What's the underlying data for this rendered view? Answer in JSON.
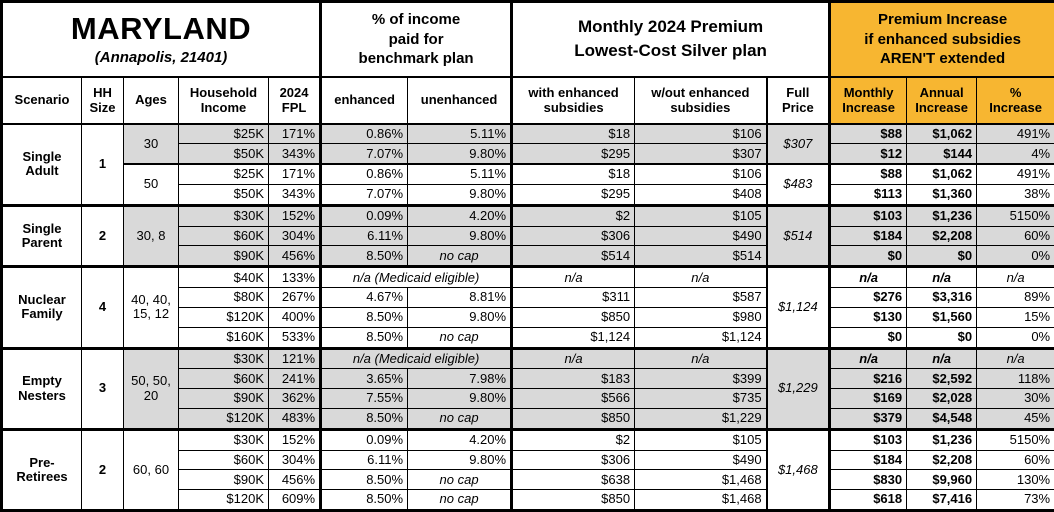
{
  "title": {
    "state": "MARYLAND",
    "location": "(Annapolis, 21401)"
  },
  "section_headers": {
    "benchmark": "% of income\npaid for\nbenchmark plan",
    "premium": "Monthly 2024 Premium\nLowest-Cost Silver plan",
    "increase": "Premium Increase\nif enhanced subsidies\nAREN'T extended"
  },
  "column_headers": {
    "scenario": "Scenario",
    "hh_size": "HH\nSize",
    "ages": "Ages",
    "income": "Household\nIncome",
    "fpl": "2024\nFPL",
    "enhanced": "enhanced",
    "unenhanced": "unenhanced",
    "with_subsidies": "with enhanced\nsubsidies",
    "without_subsidies": "w/out enhanced\nsubsidies",
    "full_price": "Full\nPrice",
    "monthly_increase": "Monthly\nIncrease",
    "annual_increase": "Annual\nIncrease",
    "pct_increase": "%\nIncrease"
  },
  "labels": {
    "medicaid": "n/a (Medicaid eligible)",
    "no_cap": "no cap",
    "na": "n/a"
  },
  "colors": {
    "accent_orange": "#F7B631",
    "band_gray": "#D9D9D9"
  },
  "groups": [
    {
      "scenario": "Single\nAdult",
      "hh_size": "1",
      "blocks": [
        {
          "ages": "30",
          "full_price": "$307",
          "rows": [
            {
              "income": "$25K",
              "fpl": "171%",
              "enhanced": "0.86%",
              "unenhanced": "5.11%",
              "with_sub": "$18",
              "without_sub": "$106",
              "monthly": "$88",
              "annual": "$1,062",
              "pct": "491%"
            },
            {
              "income": "$50K",
              "fpl": "343%",
              "enhanced": "7.07%",
              "unenhanced": "9.80%",
              "with_sub": "$295",
              "without_sub": "$307",
              "monthly": "$12",
              "annual": "$144",
              "pct": "4%"
            }
          ]
        },
        {
          "ages": "50",
          "full_price": "$483",
          "rows": [
            {
              "income": "$25K",
              "fpl": "171%",
              "enhanced": "0.86%",
              "unenhanced": "5.11%",
              "with_sub": "$18",
              "without_sub": "$106",
              "monthly": "$88",
              "annual": "$1,062",
              "pct": "491%"
            },
            {
              "income": "$50K",
              "fpl": "343%",
              "enhanced": "7.07%",
              "unenhanced": "9.80%",
              "with_sub": "$295",
              "without_sub": "$408",
              "monthly": "$113",
              "annual": "$1,360",
              "pct": "38%"
            }
          ]
        }
      ]
    },
    {
      "scenario": "Single\nParent",
      "hh_size": "2",
      "blocks": [
        {
          "ages": "30, 8",
          "full_price": "$514",
          "rows": [
            {
              "income": "$30K",
              "fpl": "152%",
              "enhanced": "0.09%",
              "unenhanced": "4.20%",
              "with_sub": "$2",
              "without_sub": "$105",
              "monthly": "$103",
              "annual": "$1,236",
              "pct": "5150%"
            },
            {
              "income": "$60K",
              "fpl": "304%",
              "enhanced": "6.11%",
              "unenhanced": "9.80%",
              "with_sub": "$306",
              "without_sub": "$490",
              "monthly": "$184",
              "annual": "$2,208",
              "pct": "60%"
            },
            {
              "income": "$90K",
              "fpl": "456%",
              "enhanced": "8.50%",
              "unenhanced": "no cap",
              "with_sub": "$514",
              "without_sub": "$514",
              "monthly": "$0",
              "annual": "$0",
              "pct": "0%"
            }
          ]
        }
      ]
    },
    {
      "scenario": "Nuclear\nFamily",
      "hh_size": "4",
      "blocks": [
        {
          "ages": "40, 40,\n15, 12",
          "full_price": "$1,124",
          "rows": [
            {
              "income": "$40K",
              "fpl": "133%",
              "medicaid": true,
              "with_sub": "n/a",
              "without_sub": "n/a",
              "monthly": "n/a",
              "annual": "n/a",
              "pct": "n/a"
            },
            {
              "income": "$80K",
              "fpl": "267%",
              "enhanced": "4.67%",
              "unenhanced": "8.81%",
              "with_sub": "$311",
              "without_sub": "$587",
              "monthly": "$276",
              "annual": "$3,316",
              "pct": "89%"
            },
            {
              "income": "$120K",
              "fpl": "400%",
              "enhanced": "8.50%",
              "unenhanced": "9.80%",
              "with_sub": "$850",
              "without_sub": "$980",
              "monthly": "$130",
              "annual": "$1,560",
              "pct": "15%"
            },
            {
              "income": "$160K",
              "fpl": "533%",
              "enhanced": "8.50%",
              "unenhanced": "no cap",
              "with_sub": "$1,124",
              "without_sub": "$1,124",
              "monthly": "$0",
              "annual": "$0",
              "pct": "0%"
            }
          ]
        }
      ]
    },
    {
      "scenario": "Empty\nNesters",
      "hh_size": "3",
      "blocks": [
        {
          "ages": "50, 50,\n20",
          "full_price": "$1,229",
          "rows": [
            {
              "income": "$30K",
              "fpl": "121%",
              "medicaid": true,
              "with_sub": "n/a",
              "without_sub": "n/a",
              "monthly": "n/a",
              "annual": "n/a",
              "pct": "n/a"
            },
            {
              "income": "$60K",
              "fpl": "241%",
              "enhanced": "3.65%",
              "unenhanced": "7.98%",
              "with_sub": "$183",
              "without_sub": "$399",
              "monthly": "$216",
              "annual": "$2,592",
              "pct": "118%"
            },
            {
              "income": "$90K",
              "fpl": "362%",
              "enhanced": "7.55%",
              "unenhanced": "9.80%",
              "with_sub": "$566",
              "without_sub": "$735",
              "monthly": "$169",
              "annual": "$2,028",
              "pct": "30%"
            },
            {
              "income": "$120K",
              "fpl": "483%",
              "enhanced": "8.50%",
              "unenhanced": "no cap",
              "with_sub": "$850",
              "without_sub": "$1,229",
              "monthly": "$379",
              "annual": "$4,548",
              "pct": "45%"
            }
          ]
        }
      ]
    },
    {
      "scenario": "Pre-\nRetirees",
      "hh_size": "2",
      "blocks": [
        {
          "ages": "60, 60",
          "full_price": "$1,468",
          "rows": [
            {
              "income": "$30K",
              "fpl": "152%",
              "enhanced": "0.09%",
              "unenhanced": "4.20%",
              "with_sub": "$2",
              "without_sub": "$105",
              "monthly": "$103",
              "annual": "$1,236",
              "pct": "5150%"
            },
            {
              "income": "$60K",
              "fpl": "304%",
              "enhanced": "6.11%",
              "unenhanced": "9.80%",
              "with_sub": "$306",
              "without_sub": "$490",
              "monthly": "$184",
              "annual": "$2,208",
              "pct": "60%"
            },
            {
              "income": "$90K",
              "fpl": "456%",
              "enhanced": "8.50%",
              "unenhanced": "no cap",
              "with_sub": "$638",
              "without_sub": "$1,468",
              "monthly": "$830",
              "annual": "$9,960",
              "pct": "130%"
            },
            {
              "income": "$120K",
              "fpl": "609%",
              "enhanced": "8.50%",
              "unenhanced": "no cap",
              "with_sub": "$850",
              "without_sub": "$1,468",
              "monthly": "$618",
              "annual": "$7,416",
              "pct": "73%"
            }
          ]
        }
      ]
    }
  ],
  "chart_data": {
    "type": "table",
    "title": "MARYLAND (Annapolis, 21401) — Monthly 2024 Premium, Lowest-Cost Silver plan",
    "columns": [
      "Scenario",
      "HH Size",
      "Ages",
      "Household Income",
      "2024 FPL",
      "enhanced % of income",
      "unenhanced % of income",
      "with enhanced subsidies",
      "w/out enhanced subsidies",
      "Full Price",
      "Monthly Increase",
      "Annual Increase",
      "% Increase"
    ],
    "rows": [
      [
        "Single Adult",
        1,
        "30",
        "$25K",
        "171%",
        "0.86%",
        "5.11%",
        "$18",
        "$106",
        "$307",
        "$88",
        "$1,062",
        "491%"
      ],
      [
        "Single Adult",
        1,
        "30",
        "$50K",
        "343%",
        "7.07%",
        "9.80%",
        "$295",
        "$307",
        "$307",
        "$12",
        "$144",
        "4%"
      ],
      [
        "Single Adult",
        1,
        "50",
        "$25K",
        "171%",
        "0.86%",
        "5.11%",
        "$18",
        "$106",
        "$483",
        "$88",
        "$1,062",
        "491%"
      ],
      [
        "Single Adult",
        1,
        "50",
        "$50K",
        "343%",
        "7.07%",
        "9.80%",
        "$295",
        "$408",
        "$483",
        "$113",
        "$1,360",
        "38%"
      ],
      [
        "Single Parent",
        2,
        "30, 8",
        "$30K",
        "152%",
        "0.09%",
        "4.20%",
        "$2",
        "$105",
        "$514",
        "$103",
        "$1,236",
        "5150%"
      ],
      [
        "Single Parent",
        2,
        "30, 8",
        "$60K",
        "304%",
        "6.11%",
        "9.80%",
        "$306",
        "$490",
        "$514",
        "$184",
        "$2,208",
        "60%"
      ],
      [
        "Single Parent",
        2,
        "30, 8",
        "$90K",
        "456%",
        "8.50%",
        "no cap",
        "$514",
        "$514",
        "$514",
        "$0",
        "$0",
        "0%"
      ],
      [
        "Nuclear Family",
        4,
        "40, 40, 15, 12",
        "$40K",
        "133%",
        "n/a (Medicaid eligible)",
        "n/a (Medicaid eligible)",
        "n/a",
        "n/a",
        "$1,124",
        "n/a",
        "n/a",
        "n/a"
      ],
      [
        "Nuclear Family",
        4,
        "40, 40, 15, 12",
        "$80K",
        "267%",
        "4.67%",
        "8.81%",
        "$311",
        "$587",
        "$1,124",
        "$276",
        "$3,316",
        "89%"
      ],
      [
        "Nuclear Family",
        4,
        "40, 40, 15, 12",
        "$120K",
        "400%",
        "8.50%",
        "9.80%",
        "$850",
        "$980",
        "$1,124",
        "$130",
        "$1,560",
        "15%"
      ],
      [
        "Nuclear Family",
        4,
        "40, 40, 15, 12",
        "$160K",
        "533%",
        "8.50%",
        "no cap",
        "$1,124",
        "$1,124",
        "$1,124",
        "$0",
        "$0",
        "0%"
      ],
      [
        "Empty Nesters",
        3,
        "50, 50, 20",
        "$30K",
        "121%",
        "n/a (Medicaid eligible)",
        "n/a (Medicaid eligible)",
        "n/a",
        "n/a",
        "$1,229",
        "n/a",
        "n/a",
        "n/a"
      ],
      [
        "Empty Nesters",
        3,
        "50, 50, 20",
        "$60K",
        "241%",
        "3.65%",
        "7.98%",
        "$183",
        "$399",
        "$1,229",
        "$216",
        "$2,592",
        "118%"
      ],
      [
        "Empty Nesters",
        3,
        "50, 50, 20",
        "$90K",
        "362%",
        "7.55%",
        "9.80%",
        "$566",
        "$735",
        "$1,229",
        "$169",
        "$2,028",
        "30%"
      ],
      [
        "Empty Nesters",
        3,
        "50, 50, 20",
        "$120K",
        "483%",
        "8.50%",
        "no cap",
        "$850",
        "$1,229",
        "$1,229",
        "$379",
        "$4,548",
        "45%"
      ],
      [
        "Pre-Retirees",
        2,
        "60, 60",
        "$30K",
        "152%",
        "0.09%",
        "4.20%",
        "$2",
        "$105",
        "$1,468",
        "$103",
        "$1,236",
        "5150%"
      ],
      [
        "Pre-Retirees",
        2,
        "60, 60",
        "$60K",
        "304%",
        "6.11%",
        "9.80%",
        "$306",
        "$490",
        "$1,468",
        "$184",
        "$2,208",
        "60%"
      ],
      [
        "Pre-Retirees",
        2,
        "60, 60",
        "$90K",
        "456%",
        "8.50%",
        "no cap",
        "$638",
        "$1,468",
        "$1,468",
        "$830",
        "$9,960",
        "130%"
      ],
      [
        "Pre-Retirees",
        2,
        "60, 60",
        "$120K",
        "609%",
        "8.50%",
        "no cap",
        "$850",
        "$1,468",
        "$1,468",
        "$618",
        "$7,416",
        "73%"
      ]
    ]
  }
}
